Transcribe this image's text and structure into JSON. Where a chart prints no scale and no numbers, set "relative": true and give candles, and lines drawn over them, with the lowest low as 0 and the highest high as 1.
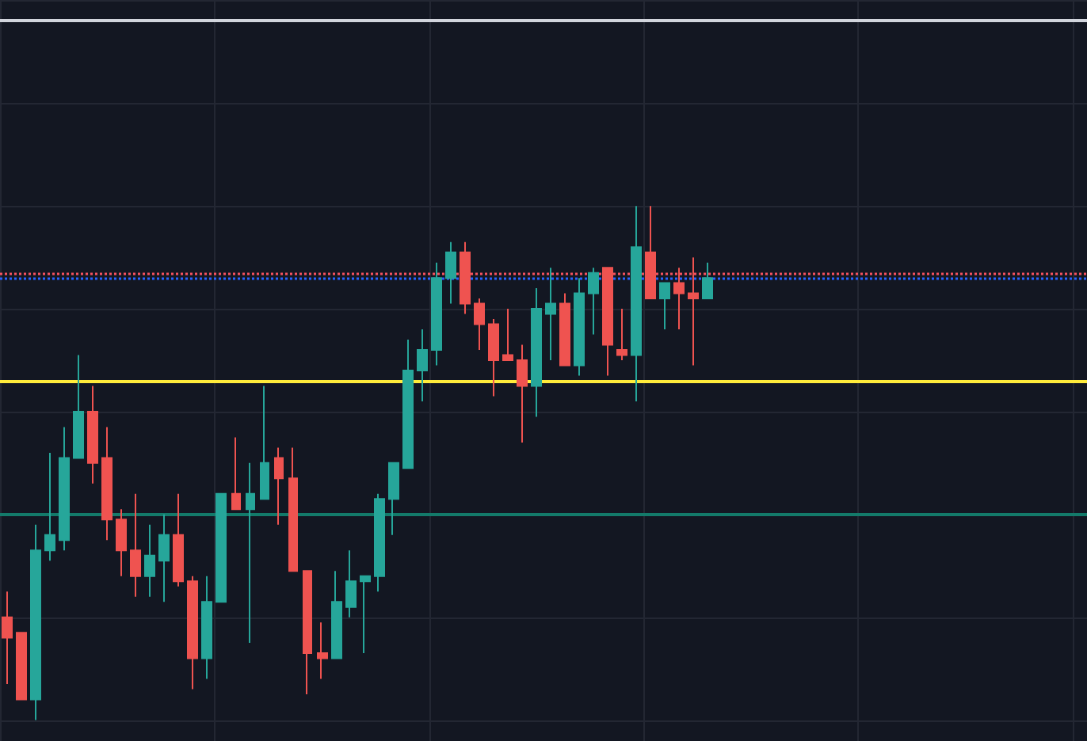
{
  "chart_data": {
    "type": "candlestick",
    "relative": true,
    "grid": true,
    "tick_labels": false,
    "colors": [
      "#ef5350",
      "#ef5350",
      "#26a69a",
      "#26a69a",
      "#26a69a",
      "#26a69a",
      "#ef5350",
      "#ef5350",
      "#ef5350",
      "#ef5350",
      "#26a69a",
      "#26a69a",
      "#ef5350",
      "#ef5350",
      "#26a69a",
      "#26a69a",
      "#ef5350",
      "#26a69a",
      "#26a69a",
      "#ef5350",
      "#ef5350",
      "#ef5350",
      "#ef5350",
      "#26a69a",
      "#26a69a",
      "#26a69a",
      "#26a69a",
      "#26a69a",
      "#26a69a",
      "#26a69a",
      "#26a69a",
      "#26a69a",
      "#ef5350",
      "#ef5350",
      "#ef5350",
      "#ef5350",
      "#ef5350",
      "#26a69a",
      "#26a69a",
      "#ef5350",
      "#26a69a",
      "#26a69a",
      "#ef5350",
      "#ef5350",
      "#26a69a",
      "#ef5350",
      "#26a69a",
      "#ef5350",
      "#ef5350",
      "#26a69a",
      null,
      null,
      null,
      null,
      null,
      null,
      null,
      null,
      null,
      null,
      null,
      null,
      null,
      null,
      null,
      null,
      null,
      null,
      null,
      null,
      null,
      null,
      null,
      null,
      null,
      null
    ],
    "categories": [
      null,
      null,
      null,
      null,
      null,
      null,
      null,
      null,
      null,
      null,
      null,
      null,
      null,
      null,
      null,
      null,
      null,
      null,
      null,
      null,
      null,
      null,
      null,
      null,
      null,
      null,
      null,
      null,
      null,
      null,
      null,
      null,
      null,
      null,
      null,
      null,
      null,
      null,
      null,
      null,
      null,
      null,
      null,
      null,
      null,
      null,
      null,
      null,
      null,
      null,
      null,
      null,
      null,
      null,
      null,
      null,
      null,
      null,
      null,
      null,
      null,
      null,
      null,
      null,
      null,
      null,
      null,
      null,
      null,
      null,
      null,
      null,
      null,
      null,
      null,
      null
    ],
    "ohlc": [
      [
        0.2,
        0.25,
        0.07,
        0.16
      ],
      [
        0.17,
        0.17,
        0.04,
        0.04
      ],
      [
        0.04,
        0.38,
        0,
        0.33
      ],
      [
        0.33,
        0.52,
        0.31,
        0.36
      ],
      [
        0.35,
        0.57,
        0.33,
        0.51
      ],
      [
        0.51,
        0.71,
        0.51,
        0.6
      ],
      [
        0.6,
        0.65,
        0.46,
        0.5
      ],
      [
        0.51,
        0.57,
        0.35,
        0.39
      ],
      [
        0.39,
        0.41,
        0.28,
        0.33
      ],
      [
        0.33,
        0.44,
        0.24,
        0.28
      ],
      [
        0.28,
        0.38,
        0.24,
        0.32
      ],
      [
        0.31,
        0.4,
        0.23,
        0.36
      ],
      [
        0.36,
        0.44,
        0.26,
        0.27
      ],
      [
        0.27,
        0.28,
        0.06,
        0.12
      ],
      [
        0.12,
        0.28,
        0.08,
        0.23
      ],
      [
        0.23,
        0.44,
        0.23,
        0.44
      ],
      [
        0.44,
        0.55,
        0.41,
        0.41
      ],
      [
        0.41,
        0.5,
        0.15,
        0.44
      ],
      [
        0.43,
        0.65,
        0.43,
        0.5
      ],
      [
        0.51,
        0.53,
        0.38,
        0.47
      ],
      [
        0.47,
        0.53,
        0.29,
        0.29
      ],
      [
        0.29,
        0.29,
        0.05,
        0.13
      ],
      [
        0.13,
        0.19,
        0.08,
        0.12
      ],
      [
        0.12,
        0.29,
        0.12,
        0.23
      ],
      [
        0.22,
        0.33,
        0.2,
        0.27
      ],
      [
        0.27,
        0.28,
        0.13,
        0.28
      ],
      [
        0.28,
        0.44,
        0.25,
        0.43
      ],
      [
        0.43,
        0.5,
        0.36,
        0.5
      ],
      [
        0.49,
        0.74,
        0.49,
        0.68
      ],
      [
        0.68,
        0.76,
        0.62,
        0.72
      ],
      [
        0.72,
        0.89,
        0.69,
        0.86
      ],
      [
        0.86,
        0.93,
        0.81,
        0.91
      ],
      [
        0.91,
        0.93,
        0.79,
        0.81
      ],
      [
        0.81,
        0.82,
        0.72,
        0.77
      ],
      [
        0.77,
        0.78,
        0.63,
        0.7
      ],
      [
        0.71,
        0.8,
        0.7,
        0.7
      ],
      [
        0.7,
        0.73,
        0.54,
        0.65
      ],
      [
        0.65,
        0.84,
        0.59,
        0.8
      ],
      [
        0.79,
        0.88,
        0.7,
        0.81
      ],
      [
        0.81,
        0.83,
        0.69,
        0.69
      ],
      [
        0.69,
        0.86,
        0.67,
        0.83
      ],
      [
        0.83,
        0.88,
        0.75,
        0.87
      ],
      [
        0.88,
        0.88,
        0.67,
        0.73
      ],
      [
        0.72,
        0.8,
        0.7,
        0.71
      ],
      [
        0.71,
        1,
        0.62,
        0.92
      ],
      [
        0.91,
        1,
        0.82,
        0.82
      ],
      [
        0.82,
        0.85,
        0.76,
        0.85
      ],
      [
        0.85,
        0.88,
        0.76,
        0.83
      ],
      [
        0.83,
        0.9,
        0.69,
        0.82
      ],
      [
        0.82,
        0.89,
        0.82,
        0.86
      ],
      null,
      null,
      null,
      null,
      null,
      null,
      null,
      null,
      null,
      null,
      null,
      null,
      null,
      null,
      null,
      null,
      null,
      null,
      null,
      null,
      null,
      null,
      null,
      null,
      null,
      null
    ],
    "ref_lines": [
      {
        "axis": "y",
        "value": 1.36,
        "color": "#d1d4dc"
      },
      {
        "axis": "y",
        "value": 0.66,
        "color": "#ffeb3b"
      },
      {
        "axis": "y",
        "value": 0.4,
        "color": "#137a6a"
      },
      {
        "axis": "y",
        "value": 0.87,
        "color": "#f7525f",
        "line_style": "dotted"
      },
      {
        "axis": "y",
        "value": 0.86,
        "color": "#2962ff",
        "line_style": "dotted"
      }
    ]
  }
}
